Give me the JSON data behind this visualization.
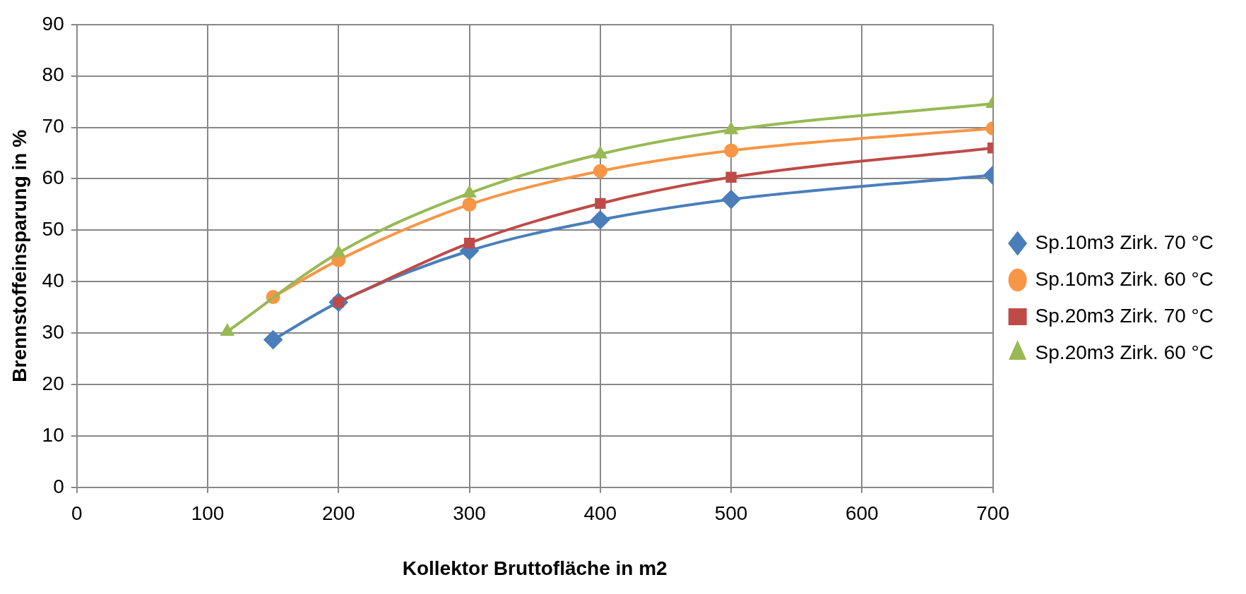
{
  "chart_data": {
    "type": "line",
    "xlabel": "Kollektor Bruttofläche in m2",
    "ylabel": "Brennstoffeinsparung in %",
    "xlim": [
      0,
      700
    ],
    "xticks": [
      0,
      100,
      200,
      300,
      400,
      500,
      600,
      700
    ],
    "ylim": [
      0,
      90
    ],
    "yticks": [
      0,
      10,
      20,
      30,
      40,
      50,
      60,
      70,
      80,
      90
    ],
    "grid": true,
    "legend": "right",
    "series": [
      {
        "name": "Sp.10m3 Zirk. 70 °C",
        "color": "#4a7ebb",
        "marker": "diamond",
        "x": [
          150,
          200,
          300,
          400,
          500,
          700
        ],
        "values": [
          28.7,
          36,
          46,
          52,
          56,
          60.7
        ]
      },
      {
        "name": "Sp.10m3 Zirk. 60 °C",
        "color": "#f79646",
        "marker": "circle",
        "x": [
          150,
          200,
          300,
          400,
          500,
          700
        ],
        "values": [
          37,
          44.2,
          55,
          61.5,
          65.5,
          69.8
        ]
      },
      {
        "name": "Sp.20m3 Zirk. 70 °C",
        "color": "#be4b48",
        "marker": "square",
        "x": [
          200,
          300,
          400,
          500,
          700
        ],
        "values": [
          36,
          47.5,
          55.2,
          60.3,
          66
        ]
      },
      {
        "name": "Sp.20m3 Zirk. 60 °C",
        "color": "#98b954",
        "marker": "triangle",
        "x": [
          115,
          200,
          300,
          400,
          500,
          700
        ],
        "values": [
          30.3,
          45.6,
          57.2,
          64.8,
          69.5,
          74.6
        ]
      }
    ]
  }
}
